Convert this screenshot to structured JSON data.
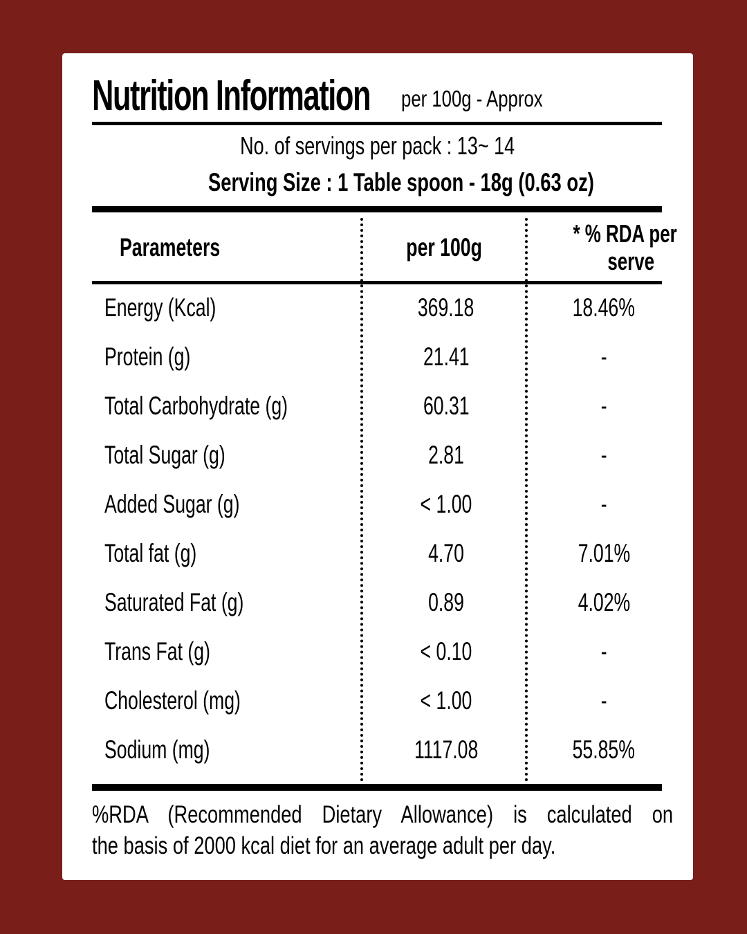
{
  "header": {
    "title": "Nutrition Information",
    "title_suffix": "per 100g - Approx",
    "servings_per_pack": "No. of servings per pack : 13~ 14",
    "serving_size": "Serving Size : 1 Table spoon - 18g (0.63 oz)"
  },
  "table": {
    "columns": [
      "Parameters",
      "per 100g",
      "* % RDA per",
      "serve"
    ],
    "rows": [
      {
        "parameter": "Energy (Kcal)",
        "per100g": "369.18",
        "rda": "18.46%"
      },
      {
        "parameter": "Protein (g)",
        "per100g": "21.41",
        "rda": "-"
      },
      {
        "parameter": "Total Carbohydrate (g)",
        "per100g": "60.31",
        "rda": "-"
      },
      {
        "parameter": "Total Sugar (g)",
        "per100g": "2.81",
        "rda": "-"
      },
      {
        "parameter": "Added Sugar (g)",
        "per100g": "< 1.00",
        "rda": "-"
      },
      {
        "parameter": "Total fat (g)",
        "per100g": "4.70",
        "rda": "7.01%"
      },
      {
        "parameter": "Saturated Fat (g)",
        "per100g": "0.89",
        "rda": "4.02%"
      },
      {
        "parameter": "Trans Fat (g)",
        "per100g": "< 0.10",
        "rda": "-"
      },
      {
        "parameter": "Cholesterol (mg)",
        "per100g": "< 1.00",
        "rda": "-"
      },
      {
        "parameter": "Sodium (mg)",
        "per100g": "1117.08",
        "rda": "55.85%"
      }
    ]
  },
  "footer": {
    "line1": "%RDA (Recommended Dietary Allowance) is calculated on",
    "line2": "the basis of 2000 kcal diet for an average adult per day."
  },
  "colors": {
    "background": "#7a1e1a",
    "card": "#ffffff",
    "text": "#000000"
  }
}
